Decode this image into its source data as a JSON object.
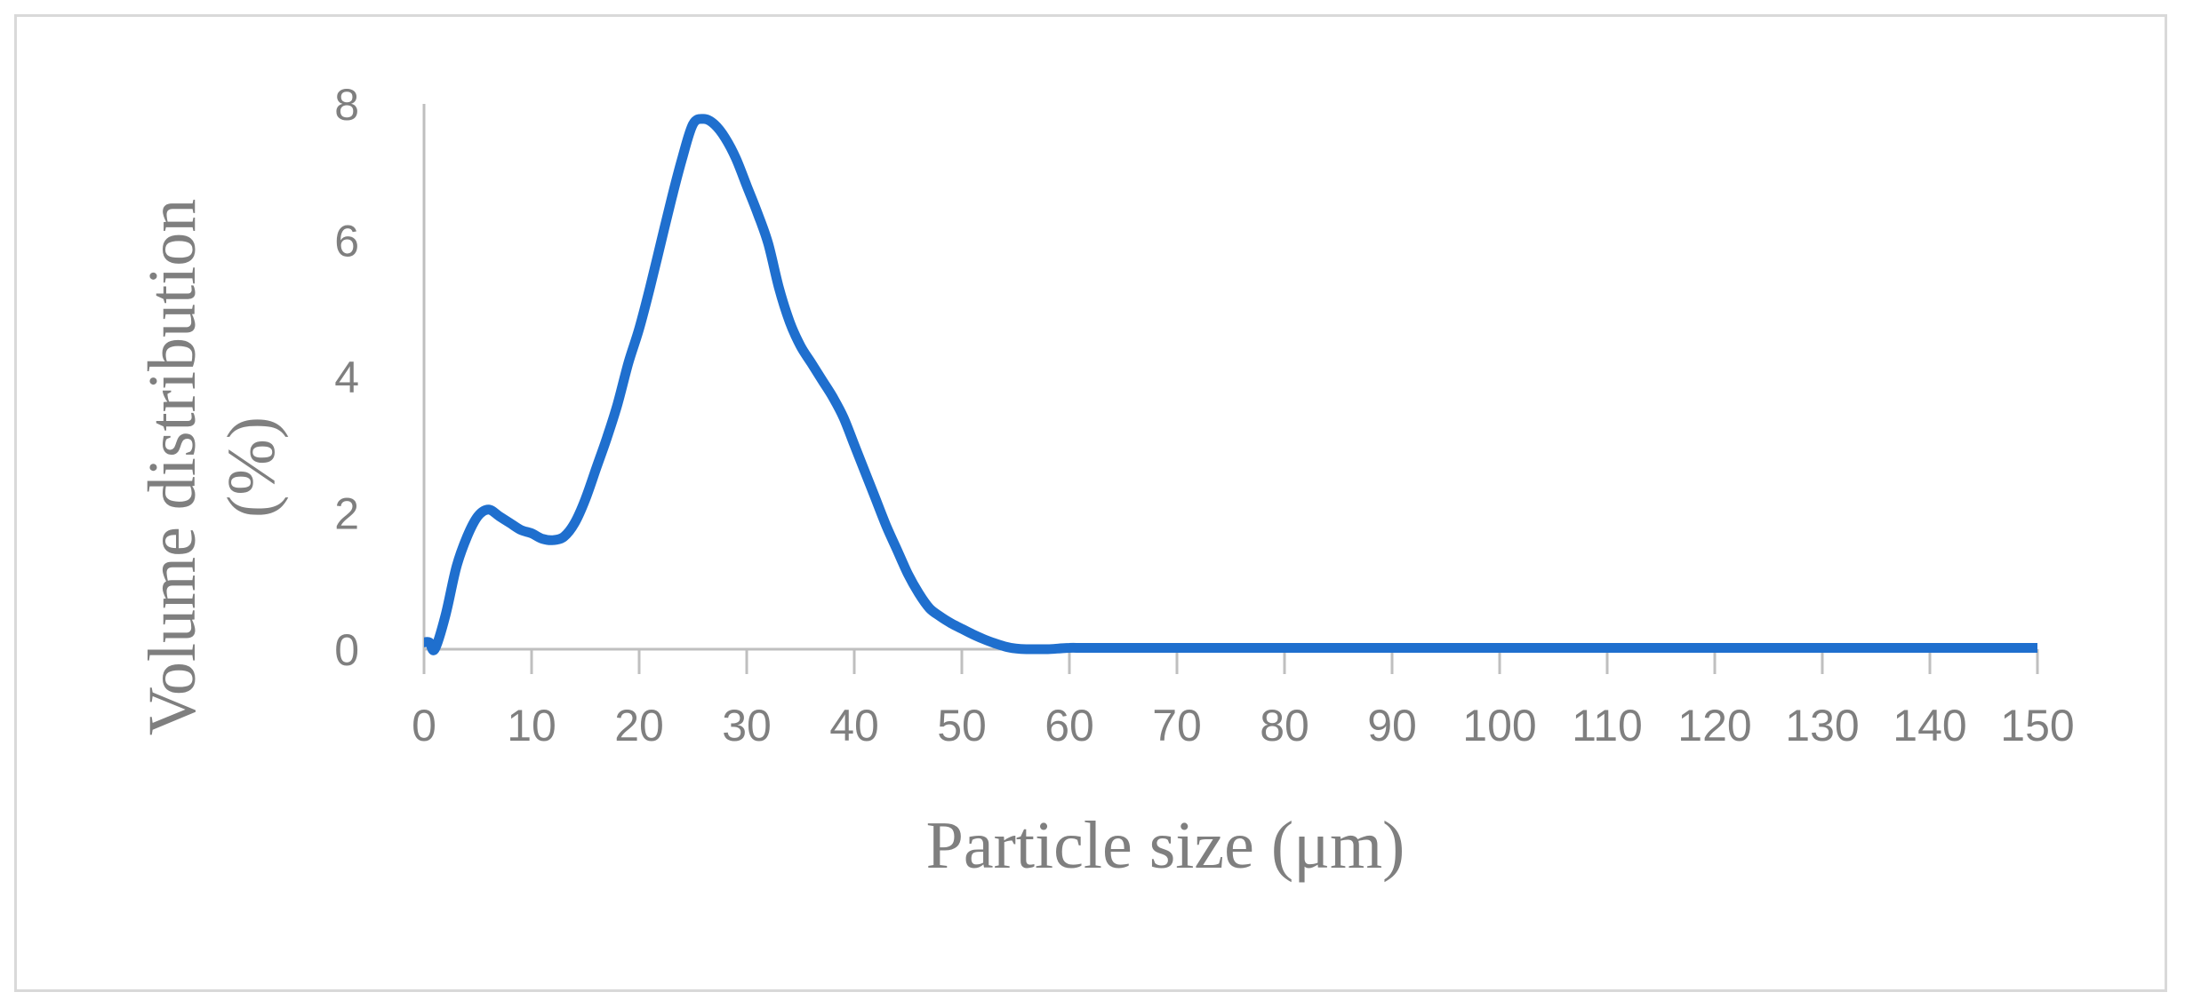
{
  "chart_data": {
    "type": "line",
    "title": "",
    "xlabel": "Particle size (μm)",
    "ylabel_lines": [
      "Volume distribution",
      "(%)"
    ],
    "xlim": [
      0,
      150
    ],
    "ylim": [
      0,
      8
    ],
    "x_ticks": [
      0,
      10,
      20,
      30,
      40,
      50,
      60,
      70,
      80,
      90,
      100,
      110,
      120,
      130,
      140,
      150
    ],
    "y_ticks": [
      0,
      2,
      4,
      6,
      8
    ],
    "grid": false,
    "legend": "none",
    "line_color": "#1f6fce",
    "axis_color": "#bfbfbf",
    "text_color": "#7f7f7f",
    "series": [
      {
        "x": [
          0,
          0.5,
          1,
          2,
          3,
          4,
          5,
          6,
          7,
          8,
          9,
          10,
          11,
          12,
          13,
          14,
          15,
          16,
          17,
          18,
          19,
          20,
          21,
          22,
          23,
          24,
          25,
          26,
          27,
          28,
          29,
          30,
          31,
          32,
          33,
          34,
          35,
          36,
          37,
          38,
          39,
          40,
          41,
          42,
          43,
          44,
          45,
          46,
          47,
          48,
          49,
          50,
          51,
          52,
          53,
          54,
          55,
          56,
          57,
          58,
          59,
          60,
          61,
          62,
          63,
          64,
          65,
          66,
          67,
          68,
          69,
          70,
          80,
          90,
          100,
          110,
          120,
          130,
          140,
          150
        ],
        "y": [
          0.1,
          0.1,
          0.0,
          0.5,
          1.2,
          1.65,
          1.95,
          2.05,
          1.95,
          1.85,
          1.75,
          1.7,
          1.62,
          1.6,
          1.65,
          1.85,
          2.2,
          2.65,
          3.1,
          3.6,
          4.2,
          4.7,
          5.3,
          5.95,
          6.6,
          7.2,
          7.7,
          7.78,
          7.7,
          7.5,
          7.2,
          6.8,
          6.4,
          5.95,
          5.3,
          4.8,
          4.45,
          4.2,
          3.95,
          3.7,
          3.4,
          3.0,
          2.6,
          2.2,
          1.8,
          1.45,
          1.1,
          0.82,
          0.6,
          0.48,
          0.38,
          0.3,
          0.22,
          0.15,
          0.09,
          0.04,
          0.01,
          0.0,
          0.0,
          0.0,
          0.01,
          0.02,
          0.02,
          0.02,
          0.02,
          0.02,
          0.02,
          0.02,
          0.02,
          0.02,
          0.02,
          0.02,
          0.02,
          0.02,
          0.02,
          0.02,
          0.02,
          0.02,
          0.02,
          0.02
        ]
      }
    ]
  }
}
